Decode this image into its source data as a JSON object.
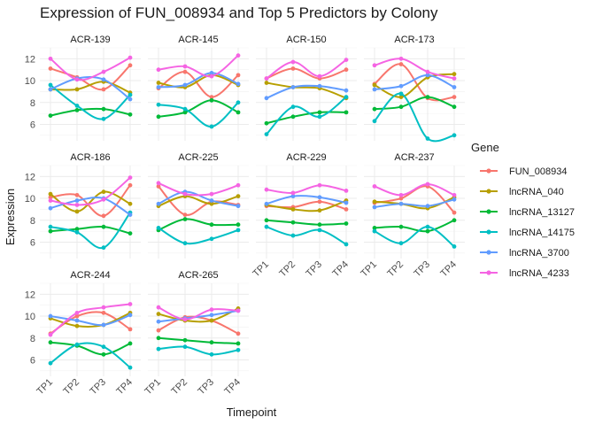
{
  "chart_data": {
    "type": "line",
    "title": "Expression of FUN_008934 and Top 5 Predictors by Colony",
    "xlabel": "Timepoint",
    "ylabel": "Expression",
    "categories": [
      "TP1",
      "TP2",
      "TP3",
      "TP4"
    ],
    "ylim": [
      4.5,
      13
    ],
    "yticks": [
      6,
      8,
      10,
      12
    ],
    "legend": {
      "title": "Gene",
      "position": "right"
    },
    "gene_names": [
      "FUN_008934",
      "lncRNA_040",
      "lncRNA_13127",
      "lncRNA_14175",
      "lncRNA_3700",
      "lncRNA_4233"
    ],
    "colors": [
      "#F8766D",
      "#B79F00",
      "#00BA38",
      "#00BFC4",
      "#619CFF",
      "#F564E3"
    ],
    "panels": [
      {
        "name": "ACR-139",
        "series": [
          [
            11.1,
            10.3,
            9.2,
            11.4
          ],
          [
            9.2,
            9.2,
            9.9,
            8.9
          ],
          [
            6.8,
            7.3,
            7.4,
            6.9
          ],
          [
            9.6,
            7.7,
            6.5,
            8.7
          ],
          [
            9.2,
            10.2,
            10.1,
            8.3
          ],
          [
            12.0,
            10.1,
            10.8,
            12.1
          ]
        ]
      },
      {
        "name": "ACR-145",
        "series": [
          [
            9.3,
            10.8,
            8.5,
            10.5
          ],
          [
            9.8,
            9.4,
            10.5,
            9.6
          ],
          [
            6.7,
            7.1,
            8.2,
            7.1
          ],
          [
            7.8,
            7.4,
            5.8,
            8.0
          ],
          [
            9.4,
            9.6,
            10.7,
            9.7
          ],
          [
            11.0,
            11.3,
            10.4,
            12.3
          ]
        ]
      },
      {
        "name": "ACR-150",
        "series": [
          [
            10.2,
            11.1,
            10.2,
            11.0
          ],
          [
            9.8,
            9.4,
            9.3,
            8.4
          ],
          [
            6.1,
            6.7,
            7.1,
            7.1
          ],
          [
            5.1,
            7.6,
            6.7,
            8.5
          ],
          [
            8.4,
            9.4,
            9.5,
            9.1
          ],
          [
            10.2,
            11.7,
            10.4,
            11.9
          ]
        ]
      },
      {
        "name": "ACR-173",
        "series": [
          [
            9.7,
            11.5,
            8.4,
            8.5
          ],
          [
            9.6,
            8.5,
            10.3,
            10.6
          ],
          [
            7.4,
            7.6,
            8.5,
            7.6
          ],
          [
            6.3,
            8.8,
            4.7,
            5.0
          ],
          [
            9.2,
            9.5,
            10.5,
            9.4
          ],
          [
            11.4,
            12.0,
            10.8,
            10.2
          ]
        ]
      },
      {
        "name": "ACR-186",
        "series": [
          [
            10.1,
            10.3,
            8.4,
            11.2
          ],
          [
            10.4,
            8.8,
            10.6,
            9.5
          ],
          [
            7.0,
            7.2,
            7.4,
            6.8
          ],
          [
            7.4,
            6.9,
            5.5,
            8.7
          ],
          [
            9.1,
            9.8,
            10.0,
            8.5
          ],
          [
            9.8,
            9.4,
            9.9,
            11.9
          ]
        ]
      },
      {
        "name": "ACR-225",
        "series": [
          [
            11.1,
            8.5,
            9.7,
            9.4
          ],
          [
            9.3,
            10.2,
            9.5,
            10.2
          ],
          [
            7.1,
            8.1,
            7.6,
            7.6
          ],
          [
            7.3,
            5.9,
            6.3,
            7.1
          ],
          [
            9.5,
            10.6,
            9.8,
            9.3
          ],
          [
            11.4,
            10.4,
            10.4,
            11.2
          ]
        ]
      },
      {
        "name": "ACR-229",
        "series": [
          [
            9.3,
            9.2,
            9.7,
            9.0
          ],
          [
            9.4,
            9.0,
            8.9,
            9.8
          ],
          [
            8.0,
            7.8,
            7.6,
            7.7
          ],
          [
            7.4,
            6.6,
            7.1,
            5.8
          ],
          [
            9.5,
            10.2,
            10.1,
            9.6
          ],
          [
            10.8,
            10.5,
            11.2,
            10.7
          ]
        ]
      },
      {
        "name": "ACR-237",
        "series": [
          [
            9.6,
            10.0,
            11.1,
            8.7
          ],
          [
            9.7,
            9.5,
            9.1,
            10.1
          ],
          [
            7.3,
            7.4,
            7.0,
            8.0
          ],
          [
            7.0,
            5.9,
            7.4,
            5.6
          ],
          [
            9.2,
            9.5,
            9.3,
            9.9
          ],
          [
            11.1,
            10.3,
            11.3,
            10.3
          ]
        ]
      },
      {
        "name": "ACR-244",
        "series": [
          [
            8.4,
            10.0,
            10.3,
            8.8
          ],
          [
            9.8,
            9.1,
            9.2,
            10.3
          ],
          [
            7.6,
            7.3,
            6.5,
            7.5
          ],
          [
            5.7,
            7.4,
            7.2,
            5.3
          ],
          [
            10.0,
            9.6,
            9.2,
            10.1
          ],
          [
            8.3,
            10.3,
            10.8,
            11.1
          ]
        ]
      },
      {
        "name": "ACR-265",
        "series": [
          [
            8.7,
            9.9,
            9.6,
            8.4
          ],
          [
            10.2,
            9.6,
            9.6,
            10.7
          ],
          [
            8.0,
            7.8,
            7.6,
            7.5
          ],
          [
            7.0,
            7.2,
            6.5,
            6.9
          ],
          [
            9.5,
            9.8,
            10.1,
            10.5
          ],
          [
            10.8,
            9.7,
            10.6,
            10.5
          ]
        ]
      }
    ]
  }
}
